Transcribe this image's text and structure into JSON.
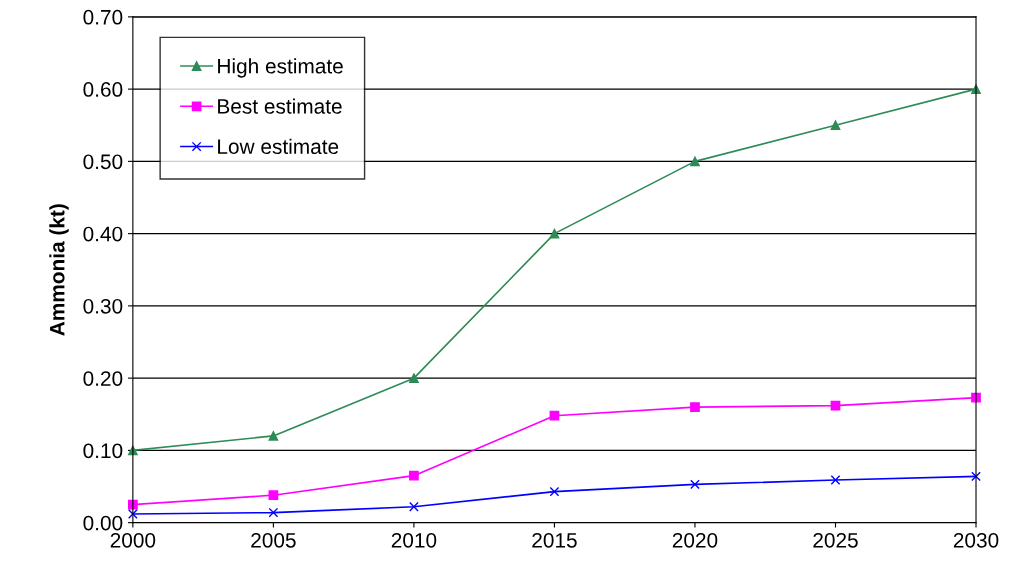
{
  "chart_data": {
    "type": "line",
    "ylabel": "Ammonia (kt)",
    "x": [
      2000,
      2005,
      2010,
      2015,
      2020,
      2025,
      2030
    ],
    "series": [
      {
        "name": "High estimate",
        "color": "#2e8b57",
        "marker": "triangle",
        "values": [
          0.1,
          0.12,
          0.2,
          0.4,
          0.5,
          0.55,
          0.6
        ]
      },
      {
        "name": "Best estimate",
        "color": "#ff00ff",
        "marker": "square",
        "values": [
          0.025,
          0.038,
          0.065,
          0.148,
          0.16,
          0.162,
          0.173
        ]
      },
      {
        "name": "Low estimate",
        "color": "#0000ff",
        "marker": "cross",
        "values": [
          0.012,
          0.014,
          0.022,
          0.043,
          0.053,
          0.059,
          0.064
        ]
      }
    ],
    "xlim": [
      2000,
      2030
    ],
    "xticks": [
      2000,
      2005,
      2010,
      2015,
      2020,
      2025,
      2030
    ],
    "ylim": [
      0,
      0.7
    ],
    "yticks": [
      {
        "value": 0,
        "label": "0.00"
      },
      {
        "value": 0.1,
        "label": "0.10"
      },
      {
        "value": 0.2,
        "label": "0.20"
      },
      {
        "value": 0.3,
        "label": "0.30"
      },
      {
        "value": 0.4,
        "label": "0.40"
      },
      {
        "value": 0.5,
        "label": "0.50"
      },
      {
        "value": 0.6,
        "label": "0.60"
      },
      {
        "value": 0.7,
        "label": "0.70"
      }
    ],
    "grid": "y",
    "legend": "top left"
  }
}
